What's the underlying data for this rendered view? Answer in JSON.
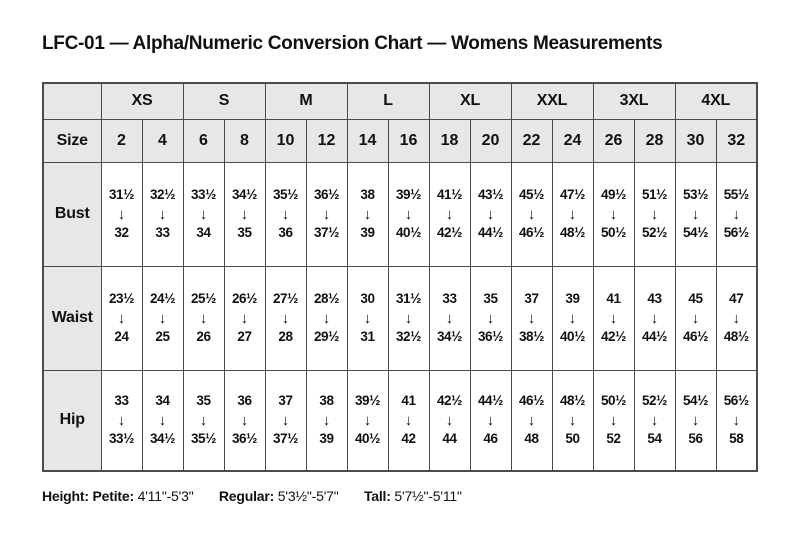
{
  "chart_data": {
    "type": "table",
    "title": "LFC-01 — Alpha/Numeric Conversion Chart — Womens Measurements",
    "alpha_sizes": [
      "XS",
      "S",
      "M",
      "L",
      "XL",
      "XXL",
      "3XL",
      "4XL"
    ],
    "size_row_label": "Size",
    "numeric_sizes": [
      "2",
      "4",
      "6",
      "8",
      "10",
      "12",
      "14",
      "16",
      "18",
      "20",
      "22",
      "24",
      "26",
      "28",
      "30",
      "32"
    ],
    "arrow_icon": "↓",
    "measurement_rows": [
      {
        "label": "Bust",
        "ranges": [
          [
            "31½",
            "32"
          ],
          [
            "32½",
            "33"
          ],
          [
            "33½",
            "34"
          ],
          [
            "34½",
            "35"
          ],
          [
            "35½",
            "36"
          ],
          [
            "36½",
            "37½"
          ],
          [
            "38",
            "39"
          ],
          [
            "39½",
            "40½"
          ],
          [
            "41½",
            "42½"
          ],
          [
            "43½",
            "44½"
          ],
          [
            "45½",
            "46½"
          ],
          [
            "47½",
            "48½"
          ],
          [
            "49½",
            "50½"
          ],
          [
            "51½",
            "52½"
          ],
          [
            "53½",
            "54½"
          ],
          [
            "55½",
            "56½"
          ]
        ]
      },
      {
        "label": "Waist",
        "ranges": [
          [
            "23½",
            "24"
          ],
          [
            "24½",
            "25"
          ],
          [
            "25½",
            "26"
          ],
          [
            "26½",
            "27"
          ],
          [
            "27½",
            "28"
          ],
          [
            "28½",
            "29½"
          ],
          [
            "30",
            "31"
          ],
          [
            "31½",
            "32½"
          ],
          [
            "33",
            "34½"
          ],
          [
            "35",
            "36½"
          ],
          [
            "37",
            "38½"
          ],
          [
            "39",
            "40½"
          ],
          [
            "41",
            "42½"
          ],
          [
            "43",
            "44½"
          ],
          [
            "45",
            "46½"
          ],
          [
            "47",
            "48½"
          ]
        ]
      },
      {
        "label": "Hip",
        "ranges": [
          [
            "33",
            "33½"
          ],
          [
            "34",
            "34½"
          ],
          [
            "35",
            "35½"
          ],
          [
            "36",
            "36½"
          ],
          [
            "37",
            "37½"
          ],
          [
            "38",
            "39"
          ],
          [
            "39½",
            "40½"
          ],
          [
            "41",
            "42"
          ],
          [
            "42½",
            "44"
          ],
          [
            "44½",
            "46"
          ],
          [
            "46½",
            "48"
          ],
          [
            "48½",
            "50"
          ],
          [
            "50½",
            "52"
          ],
          [
            "52½",
            "54"
          ],
          [
            "54½",
            "56"
          ],
          [
            "56½",
            "58"
          ]
        ]
      }
    ],
    "footnote": {
      "label": "Height:",
      "segments": [
        {
          "label": "Petite:",
          "range": "4'11\"-5'3\""
        },
        {
          "label": "Regular:",
          "range": "5'3½\"-5'7\""
        },
        {
          "label": "Tall:",
          "range": "5'7½\"-5'11\""
        }
      ]
    }
  },
  "colors": {
    "header_fill": "#e7e7e7",
    "border": "#4b4b4b",
    "text": "#111111",
    "background": "#ffffff"
  }
}
